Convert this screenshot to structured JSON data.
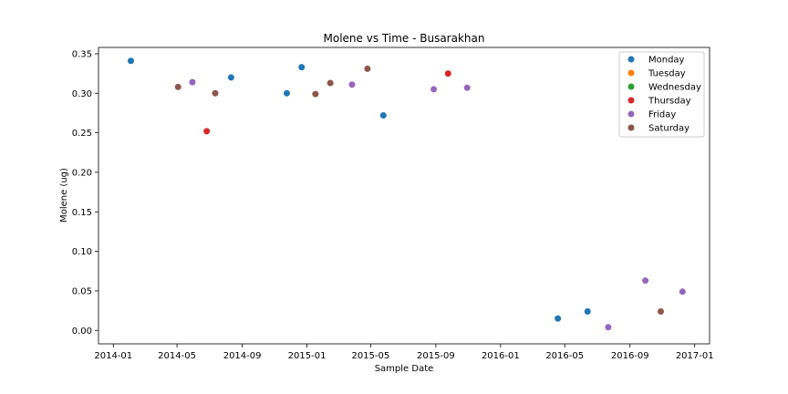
{
  "chart_data": {
    "type": "scatter",
    "title": "Molene vs Time - Busarakhan",
    "xlabel": "Sample Date",
    "ylabel": "Molene (ug)",
    "xlim": [
      "2013-12-04",
      "2017-01-29"
    ],
    "ylim": [
      -0.017,
      0.358
    ],
    "x_ticks": [
      "2014-01-01",
      "2014-05-01",
      "2014-09-01",
      "2015-01-01",
      "2015-05-01",
      "2015-09-01",
      "2016-01-01",
      "2016-05-01",
      "2016-09-01",
      "2017-01-01"
    ],
    "x_tick_labels": [
      "2014-01",
      "2014-05",
      "2014-09",
      "2015-01",
      "2015-05",
      "2015-09",
      "2016-01",
      "2016-05",
      "2016-09",
      "2017-01"
    ],
    "y_ticks": [
      0.0,
      0.05,
      0.1,
      0.15,
      0.2,
      0.25,
      0.3,
      0.35
    ],
    "y_tick_labels": [
      "0.00",
      "0.05",
      "0.10",
      "0.15",
      "0.20",
      "0.25",
      "0.30",
      "0.35"
    ],
    "grid": false,
    "legend_position": "top-right",
    "series": [
      {
        "name": "Monday",
        "color": "#1f77b4",
        "points": [
          {
            "x": "2014-02-03",
            "y": 0.341
          },
          {
            "x": "2014-08-11",
            "y": 0.32
          },
          {
            "x": "2014-11-24",
            "y": 0.3
          },
          {
            "x": "2014-12-22",
            "y": 0.333
          },
          {
            "x": "2015-05-25",
            "y": 0.272
          },
          {
            "x": "2016-04-18",
            "y": 0.015
          },
          {
            "x": "2016-06-13",
            "y": 0.024
          }
        ]
      },
      {
        "name": "Tuesday",
        "color": "#ff7f0e",
        "points": []
      },
      {
        "name": "Wednesday",
        "color": "#2ca02c",
        "points": []
      },
      {
        "name": "Thursday",
        "color": "#d62728",
        "points": [
          {
            "x": "2014-06-26",
            "y": 0.252
          },
          {
            "x": "2015-09-24",
            "y": 0.325
          }
        ]
      },
      {
        "name": "Friday",
        "color": "#9467bd",
        "points": [
          {
            "x": "2014-05-30",
            "y": 0.314
          },
          {
            "x": "2015-03-27",
            "y": 0.311
          },
          {
            "x": "2015-08-28",
            "y": 0.305
          },
          {
            "x": "2015-10-30",
            "y": 0.307
          },
          {
            "x": "2016-07-22",
            "y": 0.004
          },
          {
            "x": "2016-09-30",
            "y": 0.063
          },
          {
            "x": "2016-12-09",
            "y": 0.049
          }
        ]
      },
      {
        "name": "Saturday",
        "color": "#8c564b",
        "points": [
          {
            "x": "2014-05-03",
            "y": 0.308
          },
          {
            "x": "2014-07-12",
            "y": 0.3
          },
          {
            "x": "2015-01-17",
            "y": 0.299
          },
          {
            "x": "2015-02-14",
            "y": 0.313
          },
          {
            "x": "2015-04-25",
            "y": 0.331
          },
          {
            "x": "2016-10-29",
            "y": 0.024
          }
        ]
      }
    ]
  }
}
